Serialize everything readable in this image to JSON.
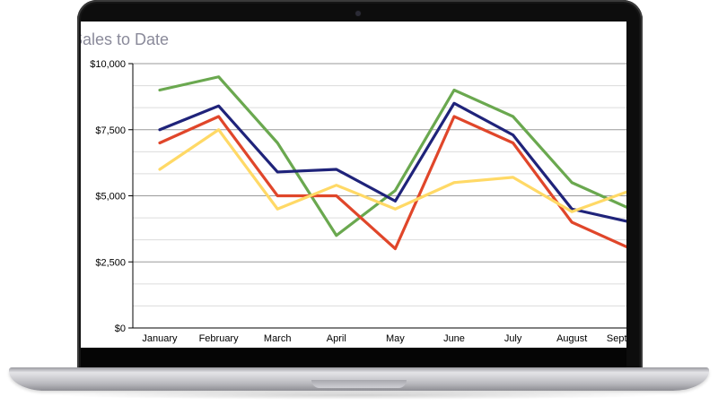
{
  "chart_data": {
    "type": "line",
    "title": "Sales to Date",
    "xlabel": "",
    "ylabel": "",
    "categories": [
      "January",
      "February",
      "March",
      "April",
      "May",
      "June",
      "July",
      "August",
      "September"
    ],
    "ylim": [
      0,
      10000
    ],
    "yticks": [
      0,
      2500,
      5000,
      7500,
      10000
    ],
    "ytick_labels": [
      "$0",
      "$2,500",
      "$5,000",
      "$7,500",
      "$10,000"
    ],
    "grid": true,
    "series": [
      {
        "color": "#6aa84f",
        "values": [
          9000,
          9500,
          7000,
          3500,
          5200,
          9000,
          8000,
          5500,
          4500
        ]
      },
      {
        "color": "#1f237a",
        "values": [
          7500,
          8400,
          5900,
          6000,
          4800,
          8500,
          7300,
          4500,
          4000
        ]
      },
      {
        "color": "#e0462a",
        "values": [
          7000,
          8000,
          5000,
          5000,
          3000,
          8000,
          7000,
          4000,
          3000
        ]
      },
      {
        "color": "#ffd966",
        "values": [
          6000,
          7500,
          4500,
          5400,
          4500,
          5500,
          5700,
          4400,
          5200
        ]
      }
    ]
  }
}
